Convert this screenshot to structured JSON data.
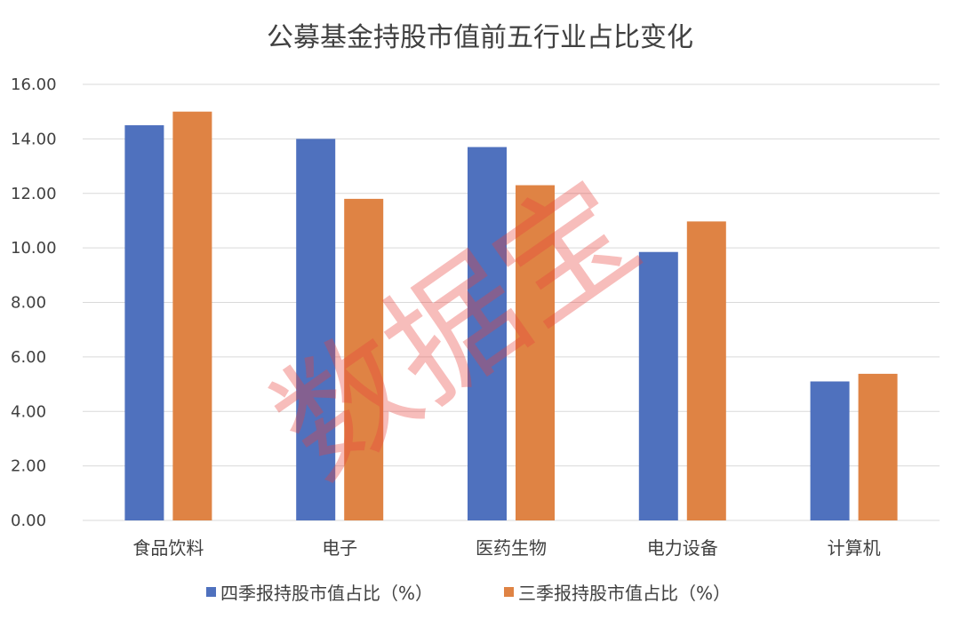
{
  "chart_data": {
    "type": "bar",
    "title": "公募基金持股市值前五行业占比变化",
    "categories": [
      "食品饮料",
      "电子",
      "医药生物",
      "电力设备",
      "计算机"
    ],
    "series": [
      {
        "name": "四季报持股市值占比（%）",
        "color": "#4f71be",
        "values": [
          14.5,
          14.0,
          13.7,
          9.85,
          5.1
        ]
      },
      {
        "name": "三季报持股市值占比（%）",
        "color": "#df8344",
        "values": [
          15.0,
          11.8,
          12.3,
          10.97,
          5.38
        ]
      }
    ],
    "ylim": [
      0,
      16
    ],
    "yticks": [
      "0.00",
      "2.00",
      "4.00",
      "6.00",
      "8.00",
      "10.00",
      "12.00",
      "14.00",
      "16.00"
    ],
    "grid": true,
    "legend": "bottom"
  },
  "watermark": "数据宝"
}
